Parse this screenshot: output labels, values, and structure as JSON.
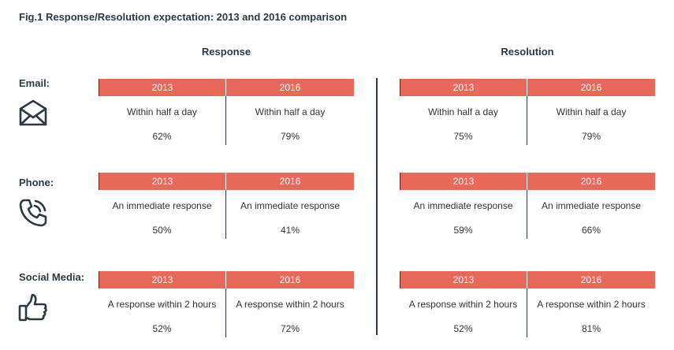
{
  "title": "Fig.1 Response/Resolution expectation: 2013 and 2016 comparison",
  "sections": {
    "response": "Response",
    "resolution": "Resolution"
  },
  "colors": {
    "header_fill": "#e8685a",
    "dark": "#2b3a42"
  },
  "chart_data": {
    "type": "table",
    "title": "Fig.1 Response/Resolution expectation: 2013 and 2016 comparison",
    "years": [
      "2013",
      "2016"
    ],
    "rows": [
      {
        "label": "Email:",
        "icon": "envelope-icon",
        "response": {
          "2013": {
            "desc": "Within half a day",
            "value": "62%"
          },
          "2016": {
            "desc": "Within half a day",
            "value": "79%"
          }
        },
        "resolution": {
          "2013": {
            "desc": "Within half a day",
            "value": "75%"
          },
          "2016": {
            "desc": "Within half a day",
            "value": "79%"
          }
        }
      },
      {
        "label": "Phone:",
        "icon": "phone-icon",
        "response": {
          "2013": {
            "desc": "An immediate response",
            "value": "50%"
          },
          "2016": {
            "desc": "An immediate response",
            "value": "41%"
          }
        },
        "resolution": {
          "2013": {
            "desc": "An immediate response",
            "value": "59%"
          },
          "2016": {
            "desc": "An immediate response",
            "value": "66%"
          }
        }
      },
      {
        "label": "Social Media:",
        "icon": "thumbs-up-icon",
        "response": {
          "2013": {
            "desc": "A response within 2 hours",
            "value": "52%"
          },
          "2016": {
            "desc": "A response within 2 hours",
            "value": "72%"
          }
        },
        "resolution": {
          "2013": {
            "desc": "A response within 2 hours",
            "value": "52%"
          },
          "2016": {
            "desc": "A response within 2 hours",
            "value": "81%"
          }
        }
      }
    ]
  }
}
